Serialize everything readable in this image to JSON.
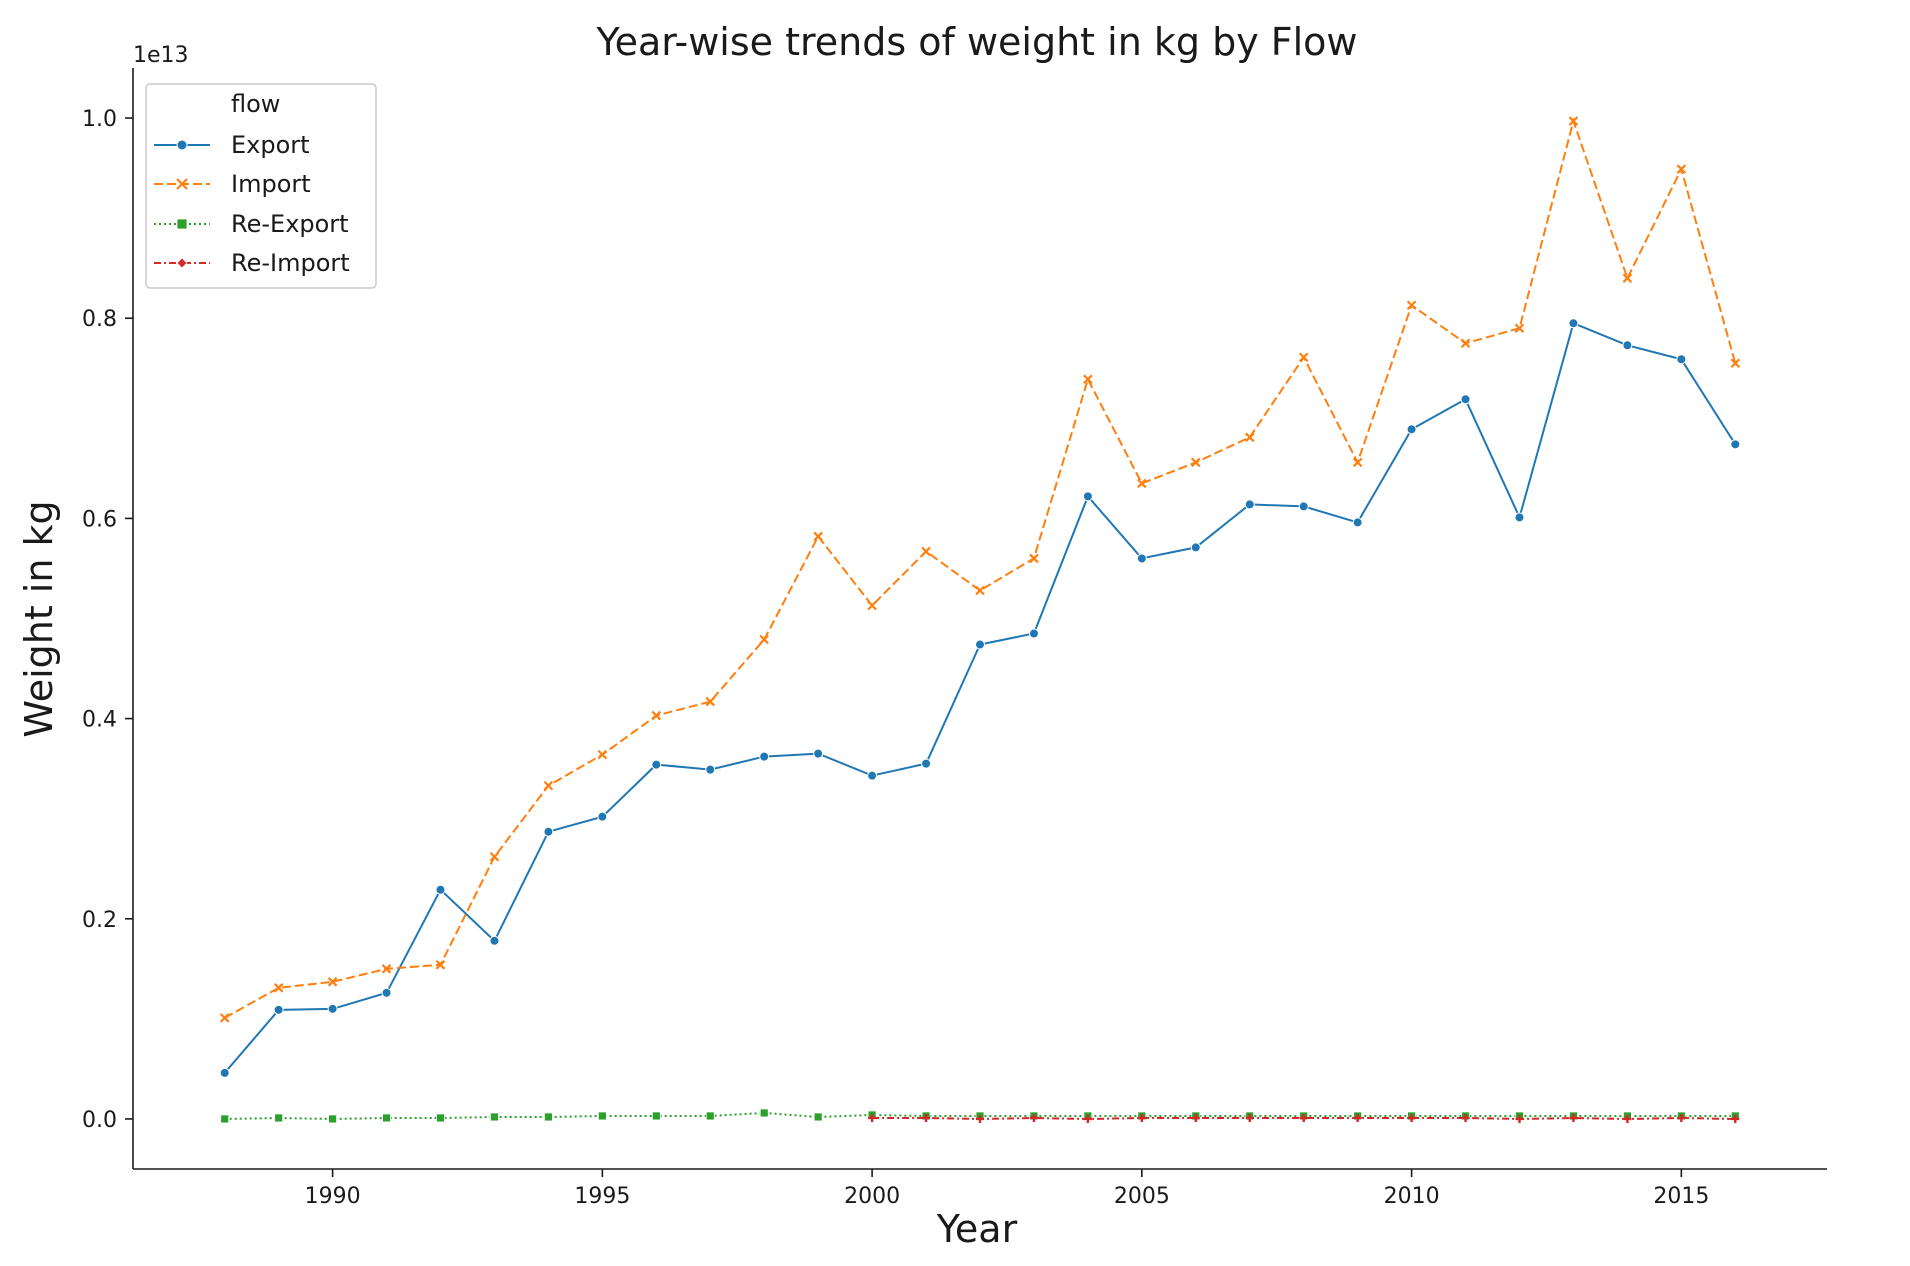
{
  "chart_data": {
    "type": "line",
    "title": "Year-wise trends of weight in kg by Flow",
    "xlabel": "Year",
    "ylabel": "Weight in kg",
    "y_scale_label": "1e13",
    "xlim": [
      1986.3,
      2017.7
    ],
    "ylim": [
      -0.05,
      1.05
    ],
    "x_ticks": [
      1990,
      1995,
      2000,
      2005,
      2010,
      2015
    ],
    "y_ticks": [
      0.0,
      0.2,
      0.4,
      0.6,
      0.8,
      1.0
    ],
    "y_tick_labels": [
      "0.0",
      "0.2",
      "0.4",
      "0.6",
      "0.8",
      "1.0"
    ],
    "grid": false,
    "legend": {
      "title": "flow",
      "position": "top-left"
    },
    "series": [
      {
        "name": "Export",
        "color": "#1f77b4",
        "dash": "solid",
        "marker": "circle",
        "x": [
          1988,
          1989,
          1990,
          1991,
          1992,
          1993,
          1994,
          1995,
          1996,
          1997,
          1998,
          1999,
          2000,
          2001,
          2002,
          2003,
          2004,
          2005,
          2006,
          2007,
          2008,
          2009,
          2010,
          2011,
          2012,
          2013,
          2014,
          2015,
          2016
        ],
        "y": [
          0.046,
          0.109,
          0.11,
          0.126,
          0.229,
          0.178,
          0.287,
          0.302,
          0.354,
          0.349,
          0.362,
          0.365,
          0.343,
          0.355,
          0.474,
          0.485,
          0.622,
          0.56,
          0.571,
          0.614,
          0.612,
          0.596,
          0.689,
          0.719,
          0.601,
          0.795,
          0.773,
          0.759,
          0.674
        ]
      },
      {
        "name": "Import",
        "color": "#ff7f0e",
        "dash": "dashed",
        "marker": "x",
        "x": [
          1988,
          1989,
          1990,
          1991,
          1992,
          1993,
          1994,
          1995,
          1996,
          1997,
          1998,
          1999,
          2000,
          2001,
          2002,
          2003,
          2004,
          2005,
          2006,
          2007,
          2008,
          2009,
          2010,
          2011,
          2012,
          2013,
          2014,
          2015,
          2016
        ],
        "y": [
          0.101,
          0.131,
          0.137,
          0.15,
          0.154,
          0.262,
          0.333,
          0.364,
          0.403,
          0.417,
          0.479,
          0.582,
          0.513,
          0.567,
          0.528,
          0.56,
          0.739,
          0.635,
          0.656,
          0.681,
          0.761,
          0.656,
          0.813,
          0.775,
          0.79,
          0.997,
          0.84,
          0.949,
          0.755
        ]
      },
      {
        "name": "Re-Export",
        "color": "#2ca02c",
        "dash": "dotted",
        "marker": "square",
        "x": [
          1988,
          1989,
          1990,
          1991,
          1992,
          1993,
          1994,
          1995,
          1996,
          1997,
          1998,
          1999,
          2000,
          2001,
          2002,
          2003,
          2004,
          2005,
          2006,
          2007,
          2008,
          2009,
          2010,
          2011,
          2012,
          2013,
          2014,
          2015,
          2016
        ],
        "y": [
          0.0,
          0.001,
          0.0,
          0.001,
          0.001,
          0.002,
          0.002,
          0.003,
          0.003,
          0.003,
          0.006,
          0.002,
          0.004,
          0.003,
          0.003,
          0.003,
          0.003,
          0.003,
          0.003,
          0.003,
          0.003,
          0.003,
          0.003,
          0.003,
          0.003,
          0.003,
          0.003,
          0.003,
          0.003
        ]
      },
      {
        "name": "Re-Import",
        "color": "#d62728",
        "dash": "dashdot",
        "marker": "plus",
        "x": [
          2000,
          2001,
          2002,
          2003,
          2004,
          2005,
          2006,
          2007,
          2008,
          2009,
          2010,
          2011,
          2012,
          2013,
          2014,
          2015,
          2016
        ],
        "y": [
          0.001,
          0.001,
          0.0,
          0.001,
          0.0,
          0.001,
          0.001,
          0.001,
          0.001,
          0.001,
          0.001,
          0.001,
          0.0,
          0.001,
          0.0,
          0.001,
          0.0
        ]
      }
    ]
  }
}
